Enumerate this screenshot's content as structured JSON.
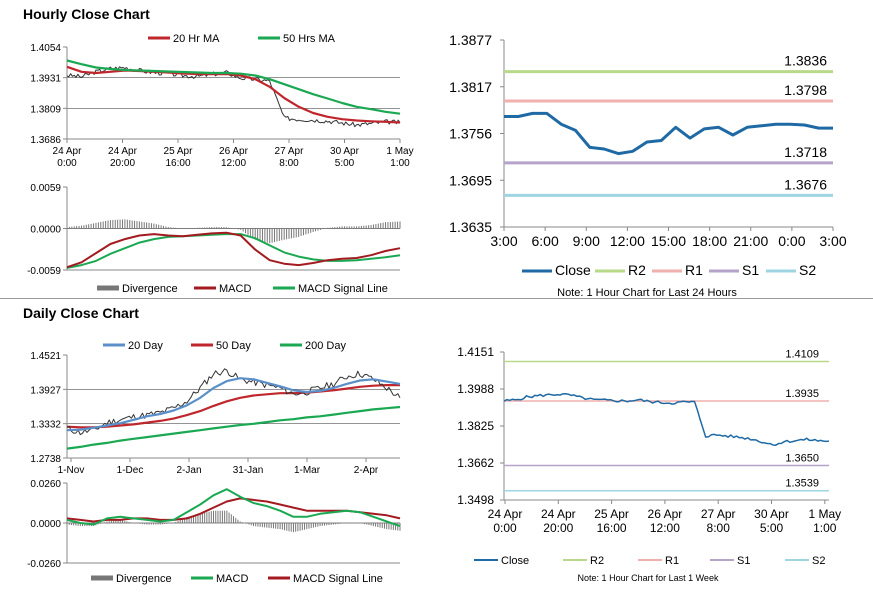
{
  "titles": {
    "hourly": "Hourly Close Chart",
    "daily": "Daily Close Chart"
  },
  "colors": {
    "ma20": "#c0272d",
    "ma50h": "#1aa952",
    "price": "#333333",
    "close": "#1f6aa5",
    "r2": "#b9d98a",
    "r1": "#f0b1ae",
    "s1": "#b5a3c9",
    "s2": "#9fd5e3",
    "macd_red": "#a31b20",
    "macd_green": "#1aa952",
    "divergence": "#777777",
    "day20": "#5b8fc9",
    "day50": "#c0272d",
    "day200": "#1aa952"
  },
  "chart_data": [
    {
      "id": "hourly_price",
      "type": "line",
      "legend": [
        "20 Hr MA",
        "50 Hrs MA"
      ],
      "yticks": [
        "1.4054",
        "1.3931",
        "1.3809",
        "1.3686"
      ],
      "ylim": [
        1.3686,
        1.4054
      ],
      "xticks": [
        [
          "24 Apr",
          "0:00"
        ],
        [
          "24 Apr",
          "20:00"
        ],
        [
          "25 Apr",
          "16:00"
        ],
        [
          "26 Apr",
          "12:00"
        ],
        [
          "27 Apr",
          "8:00"
        ],
        [
          "30 Apr",
          "5:00"
        ],
        [
          "1 May",
          "1:00"
        ]
      ],
      "series": [
        {
          "name": "Close",
          "values": [
            1.3941,
            1.3935,
            1.3955,
            1.3968,
            1.3972,
            1.396,
            1.3952,
            1.3948,
            1.394,
            1.3936,
            1.3945,
            1.3952,
            1.393,
            1.3925,
            1.3918,
            1.377,
            1.3765,
            1.3762,
            1.3758,
            1.375,
            1.3742,
            1.3748,
            1.3755,
            1.3752
          ]
        },
        {
          "name": "20 Hr MA",
          "values": [
            1.3975,
            1.3955,
            1.395,
            1.3955,
            1.396,
            1.3958,
            1.3955,
            1.3952,
            1.3948,
            1.3946,
            1.3945,
            1.3946,
            1.394,
            1.3925,
            1.3895,
            1.385,
            1.3815,
            1.379,
            1.3775,
            1.3765,
            1.376,
            1.3757,
            1.3755,
            1.3752
          ]
        },
        {
          "name": "50 Hrs MA",
          "values": [
            1.4,
            1.3985,
            1.3972,
            1.3966,
            1.3962,
            1.396,
            1.3958,
            1.3956,
            1.3954,
            1.3952,
            1.395,
            1.395,
            1.3947,
            1.394,
            1.3925,
            1.3905,
            1.3885,
            1.3865,
            1.3848,
            1.383,
            1.3815,
            1.3805,
            1.3795,
            1.3787
          ]
        }
      ]
    },
    {
      "id": "hourly_macd",
      "type": "line",
      "legend": [
        "Divergence",
        "MACD",
        "MACD Signal Line"
      ],
      "yticks": [
        "0.0059",
        "0.0000",
        "-0.0059"
      ],
      "ylim": [
        -0.0059,
        0.0059
      ],
      "series": [
        {
          "name": "MACD",
          "values": [
            -0.0055,
            -0.0048,
            -0.0035,
            -0.0022,
            -0.0015,
            -0.001,
            -0.0008,
            -0.001,
            -0.0011,
            -0.0009,
            -0.0007,
            -0.0006,
            -0.001,
            -0.003,
            -0.0045,
            -0.005,
            -0.0052,
            -0.0049,
            -0.0045,
            -0.0043,
            -0.0042,
            -0.0038,
            -0.0032,
            -0.0028
          ]
        },
        {
          "name": "MACD Signal Line",
          "values": [
            -0.0056,
            -0.0052,
            -0.0046,
            -0.0036,
            -0.0028,
            -0.002,
            -0.0015,
            -0.0012,
            -0.0011,
            -0.001,
            -0.0009,
            -0.0008,
            -0.0008,
            -0.0014,
            -0.0024,
            -0.0034,
            -0.004,
            -0.0044,
            -0.0046,
            -0.0046,
            -0.0045,
            -0.0043,
            -0.0041,
            -0.0038
          ]
        },
        {
          "name": "Divergence",
          "values": [
            0.0002,
            0.0004,
            0.0008,
            0.0012,
            0.0013,
            0.001,
            0.0007,
            0.0002,
            0.0,
            0.0001,
            0.0002,
            0.0002,
            -0.0002,
            -0.0016,
            -0.0021,
            -0.0016,
            -0.0012,
            -0.0005,
            0.0001,
            0.0003,
            0.0003,
            0.0005,
            0.0009,
            0.001
          ]
        }
      ]
    },
    {
      "id": "hourly_pivot",
      "type": "line",
      "title": "",
      "note": "Note: 1 Hour Chart for Last 24 Hours",
      "yticks": [
        "1.3877",
        "1.3817",
        "1.3756",
        "1.3695",
        "1.3635"
      ],
      "ylim": [
        1.3635,
        1.3877
      ],
      "xticks": [
        "3:00",
        "6:00",
        "9:00",
        "12:00",
        "15:00",
        "18:00",
        "21:00",
        "0:00",
        "3:00"
      ],
      "legend": [
        "Close",
        "R2",
        "R1",
        "S1",
        "S2"
      ],
      "levels": [
        {
          "name": "R2",
          "value": 1.3836,
          "label": "1.3836"
        },
        {
          "name": "R1",
          "value": 1.3798,
          "label": "1.3798"
        },
        {
          "name": "S1",
          "value": 1.3718,
          "label": "1.3718"
        },
        {
          "name": "S2",
          "value": 1.3676,
          "label": "1.3676"
        }
      ],
      "close": [
        1.3778,
        1.3778,
        1.3782,
        1.3782,
        1.3768,
        1.376,
        1.3738,
        1.3736,
        1.373,
        1.3733,
        1.3745,
        1.3747,
        1.3764,
        1.375,
        1.3762,
        1.3764,
        1.3754,
        1.3764,
        1.3766,
        1.3768,
        1.3768,
        1.3767,
        1.3763,
        1.3763
      ]
    },
    {
      "id": "daily_price",
      "type": "line",
      "legend": [
        "20 Day",
        "50 Day",
        "200 Day"
      ],
      "yticks": [
        "1.4521",
        "1.3927",
        "1.3332",
        "1.2738"
      ],
      "ylim": [
        1.2738,
        1.4521
      ],
      "xticks": [
        "1-Nov",
        "1-Dec",
        "2-Jan",
        "31-Jan",
        "1-Mar",
        "2-Apr"
      ],
      "series": [
        {
          "name": "Close",
          "values": [
            1.325,
            1.318,
            1.322,
            1.335,
            1.34,
            1.345,
            1.348,
            1.352,
            1.36,
            1.372,
            1.395,
            1.42,
            1.425,
            1.41,
            1.405,
            1.4,
            1.395,
            1.385,
            1.388,
            1.395,
            1.402,
            1.415,
            1.42,
            1.41,
            1.395,
            1.378
          ]
        },
        {
          "name": "20 Day",
          "values": [
            1.322,
            1.323,
            1.326,
            1.33,
            1.334,
            1.34,
            1.346,
            1.35,
            1.356,
            1.365,
            1.378,
            1.395,
            1.407,
            1.412,
            1.41,
            1.404,
            1.398,
            1.391,
            1.388,
            1.39,
            1.395,
            1.402,
            1.408,
            1.41,
            1.406,
            1.402
          ]
        },
        {
          "name": "50 Day",
          "values": [
            1.328,
            1.327,
            1.327,
            1.328,
            1.33,
            1.332,
            1.335,
            1.338,
            1.342,
            1.348,
            1.355,
            1.364,
            1.372,
            1.378,
            1.382,
            1.384,
            1.386,
            1.386,
            1.387,
            1.389,
            1.391,
            1.394,
            1.397,
            1.399,
            1.4,
            1.4
          ]
        },
        {
          "name": "200 Day",
          "values": [
            1.29,
            1.293,
            1.297,
            1.3,
            1.304,
            1.307,
            1.31,
            1.313,
            1.316,
            1.319,
            1.322,
            1.325,
            1.328,
            1.331,
            1.333,
            1.336,
            1.339,
            1.341,
            1.344,
            1.346,
            1.349,
            1.352,
            1.355,
            1.358,
            1.36,
            1.362
          ]
        }
      ]
    },
    {
      "id": "daily_macd",
      "type": "line",
      "legend": [
        "Divergence",
        "MACD",
        "MACD Signal Line"
      ],
      "yticks": [
        "0.0260",
        "0.0000",
        "-0.0260"
      ],
      "ylim": [
        -0.026,
        0.026
      ],
      "series": [
        {
          "name": "MACD",
          "values": [
            0.002,
            0.0,
            -0.001,
            0.003,
            0.004,
            0.003,
            0.002,
            0.001,
            0.002,
            0.007,
            0.012,
            0.018,
            0.022,
            0.017,
            0.013,
            0.011,
            0.008,
            0.004,
            0.004,
            0.006,
            0.007,
            0.008,
            0.007,
            0.004,
            0.001,
            -0.002
          ]
        },
        {
          "name": "MACD Signal Line",
          "values": [
            0.003,
            0.002,
            0.001,
            0.002,
            0.002,
            0.003,
            0.003,
            0.002,
            0.002,
            0.003,
            0.006,
            0.01,
            0.014,
            0.016,
            0.015,
            0.014,
            0.012,
            0.01,
            0.008,
            0.008,
            0.008,
            0.008,
            0.007,
            0.006,
            0.005,
            0.003
          ]
        },
        {
          "name": "Divergence",
          "values": [
            -0.001,
            -0.002,
            -0.002,
            0.001,
            0.002,
            0.0,
            -0.001,
            -0.001,
            0.0,
            0.004,
            0.006,
            0.008,
            0.008,
            0.001,
            -0.002,
            -0.003,
            -0.004,
            -0.006,
            -0.004,
            -0.002,
            -0.001,
            0.0,
            0.0,
            -0.002,
            -0.004,
            -0.005
          ]
        }
      ]
    },
    {
      "id": "daily_pivot",
      "type": "line",
      "note": "Note: 1 Hour Chart for Last 1 Week",
      "yticks": [
        "1.4151",
        "1.3988",
        "1.3825",
        "1.3662",
        "1.3498"
      ],
      "ylim": [
        1.3498,
        1.4151
      ],
      "xticks": [
        [
          "24 Apr",
          "0:00"
        ],
        [
          "24 Apr",
          "20:00"
        ],
        [
          "25 Apr",
          "16:00"
        ],
        [
          "26 Apr",
          "12:00"
        ],
        [
          "27 Apr",
          "8:00"
        ],
        [
          "30 Apr",
          "5:00"
        ],
        [
          "1 May",
          "1:00"
        ]
      ],
      "legend": [
        "Close",
        "R2",
        "R1",
        "S1",
        "S2"
      ],
      "levels": [
        {
          "name": "R2",
          "value": 1.4109,
          "label": "1.4109"
        },
        {
          "name": "R1",
          "value": 1.3935,
          "label": "1.3935"
        },
        {
          "name": "S1",
          "value": 1.365,
          "label": "1.3650"
        },
        {
          "name": "S2",
          "value": 1.3539,
          "label": "1.3539"
        }
      ],
      "close": [
        1.3935,
        1.394,
        1.3952,
        1.3958,
        1.3962,
        1.3965,
        1.396,
        1.3948,
        1.394,
        1.3938,
        1.3936,
        1.3935,
        1.394,
        1.3932,
        1.3928,
        1.3926,
        1.393,
        1.393,
        1.378,
        1.3785,
        1.378,
        1.3775,
        1.3768,
        1.3755,
        1.3742,
        1.3755,
        1.376,
        1.3765,
        1.376,
        1.3758
      ]
    }
  ]
}
